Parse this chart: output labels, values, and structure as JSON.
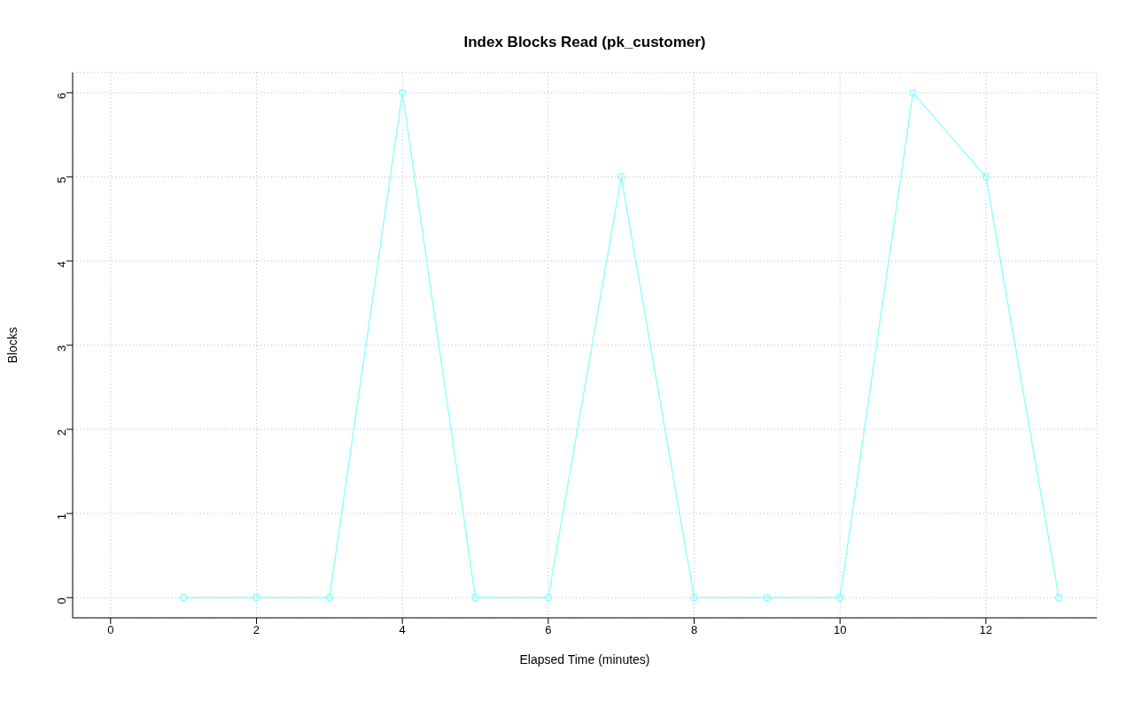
{
  "chart_data": {
    "type": "line",
    "title": "Index Blocks Read (pk_customer)",
    "xlabel": "Elapsed Time (minutes)",
    "ylabel": "Blocks",
    "x": [
      1,
      2,
      3,
      4,
      5,
      6,
      7,
      8,
      9,
      10,
      11,
      12,
      13
    ],
    "series": [
      {
        "color": "#80ffff",
        "values": [
          0,
          0,
          0,
          6,
          0,
          0,
          5,
          0,
          0,
          0,
          6,
          5,
          0
        ]
      }
    ],
    "xlim": [
      -0.52,
      13.52
    ],
    "xticks": [
      0,
      2,
      4,
      6,
      8,
      10,
      12
    ],
    "ylim": [
      -0.24,
      6.24
    ],
    "yticks": [
      0,
      1,
      2,
      3,
      4,
      5,
      6
    ],
    "grid": true,
    "marker": "circle",
    "line_style": "solid",
    "legend": false
  }
}
